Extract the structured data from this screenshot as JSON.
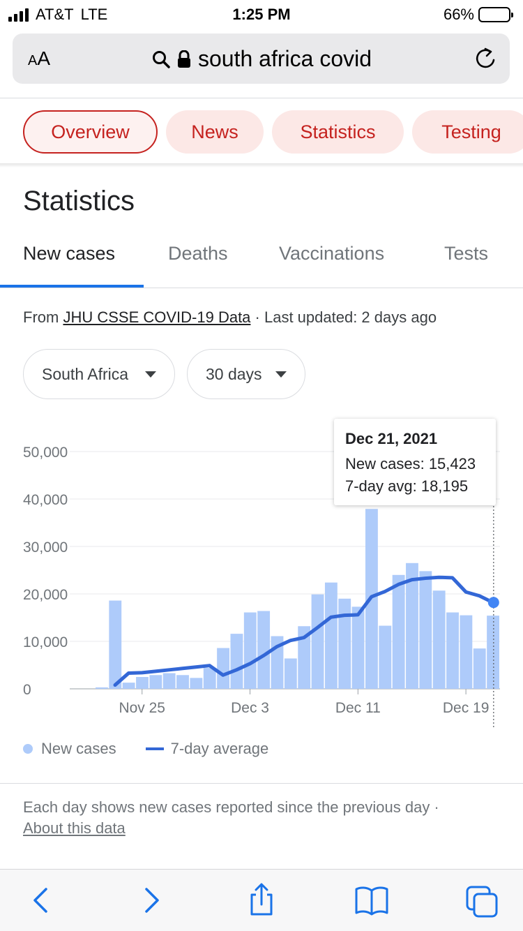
{
  "status": {
    "carrier": "AT&T",
    "network": "LTE",
    "time": "1:25 PM",
    "battery_pct": "66%",
    "battery_level": 0.66
  },
  "url_bar": {
    "text_size_label_small": "A",
    "text_size_label_big": "A",
    "query": "south africa covid"
  },
  "chips": [
    "Overview",
    "News",
    "Statistics",
    "Testing"
  ],
  "section_title": "Statistics",
  "tabs": [
    "New cases",
    "Deaths",
    "Vaccinations",
    "Tests"
  ],
  "source": {
    "prefix": "From ",
    "link": "JHU CSSE COVID-19 Data",
    "suffix": " · Last updated: 2 days ago"
  },
  "filters": {
    "region": "South Africa",
    "range": "30 days"
  },
  "tooltip": {
    "date": "Dec 21, 2021",
    "new_cases": "New cases: 15,423",
    "avg": "7-day avg: 18,195"
  },
  "legend": {
    "bars": "New cases",
    "line": "7-day average"
  },
  "footnote": {
    "text": "Each day shows new cases reported since the previous day · ",
    "link": "About this data"
  },
  "colors": {
    "bar": "#aecbfa",
    "line": "#3367d6",
    "chip_text": "#c5221f",
    "tab_accent": "#1a73e8"
  },
  "chart_data": {
    "type": "bar",
    "y_ticks": [
      "0",
      "10,000",
      "20,000",
      "30,000",
      "40,000",
      "50,000"
    ],
    "ylim": [
      0,
      50000
    ],
    "x_ticks": [
      "Nov 25",
      "Dec 3",
      "Dec 11",
      "Dec 19"
    ],
    "x_tick_index": [
      3,
      11,
      19,
      27
    ],
    "grid": true,
    "series": [
      {
        "name": "New cases",
        "type": "bar",
        "values": [
          300,
          18600,
          1300,
          2500,
          2900,
          3300,
          2900,
          2300,
          4400,
          8600,
          11600,
          16100,
          16400,
          11100,
          6400,
          13200,
          19900,
          22400,
          19000,
          17300,
          37900,
          13300,
          24000,
          26500,
          24800,
          20700,
          16100,
          15500,
          8500,
          15423
        ]
      },
      {
        "name": "7-day average",
        "type": "line",
        "values": [
          null,
          800,
          3300,
          3400,
          3700,
          4000,
          4300,
          4600,
          4900,
          2900,
          4000,
          5300,
          7000,
          8900,
          10200,
          10800,
          12900,
          15100,
          15500,
          15600,
          19400,
          20500,
          22000,
          23000,
          23300,
          23500,
          23400,
          20400,
          19600,
          18195
        ]
      }
    ]
  }
}
